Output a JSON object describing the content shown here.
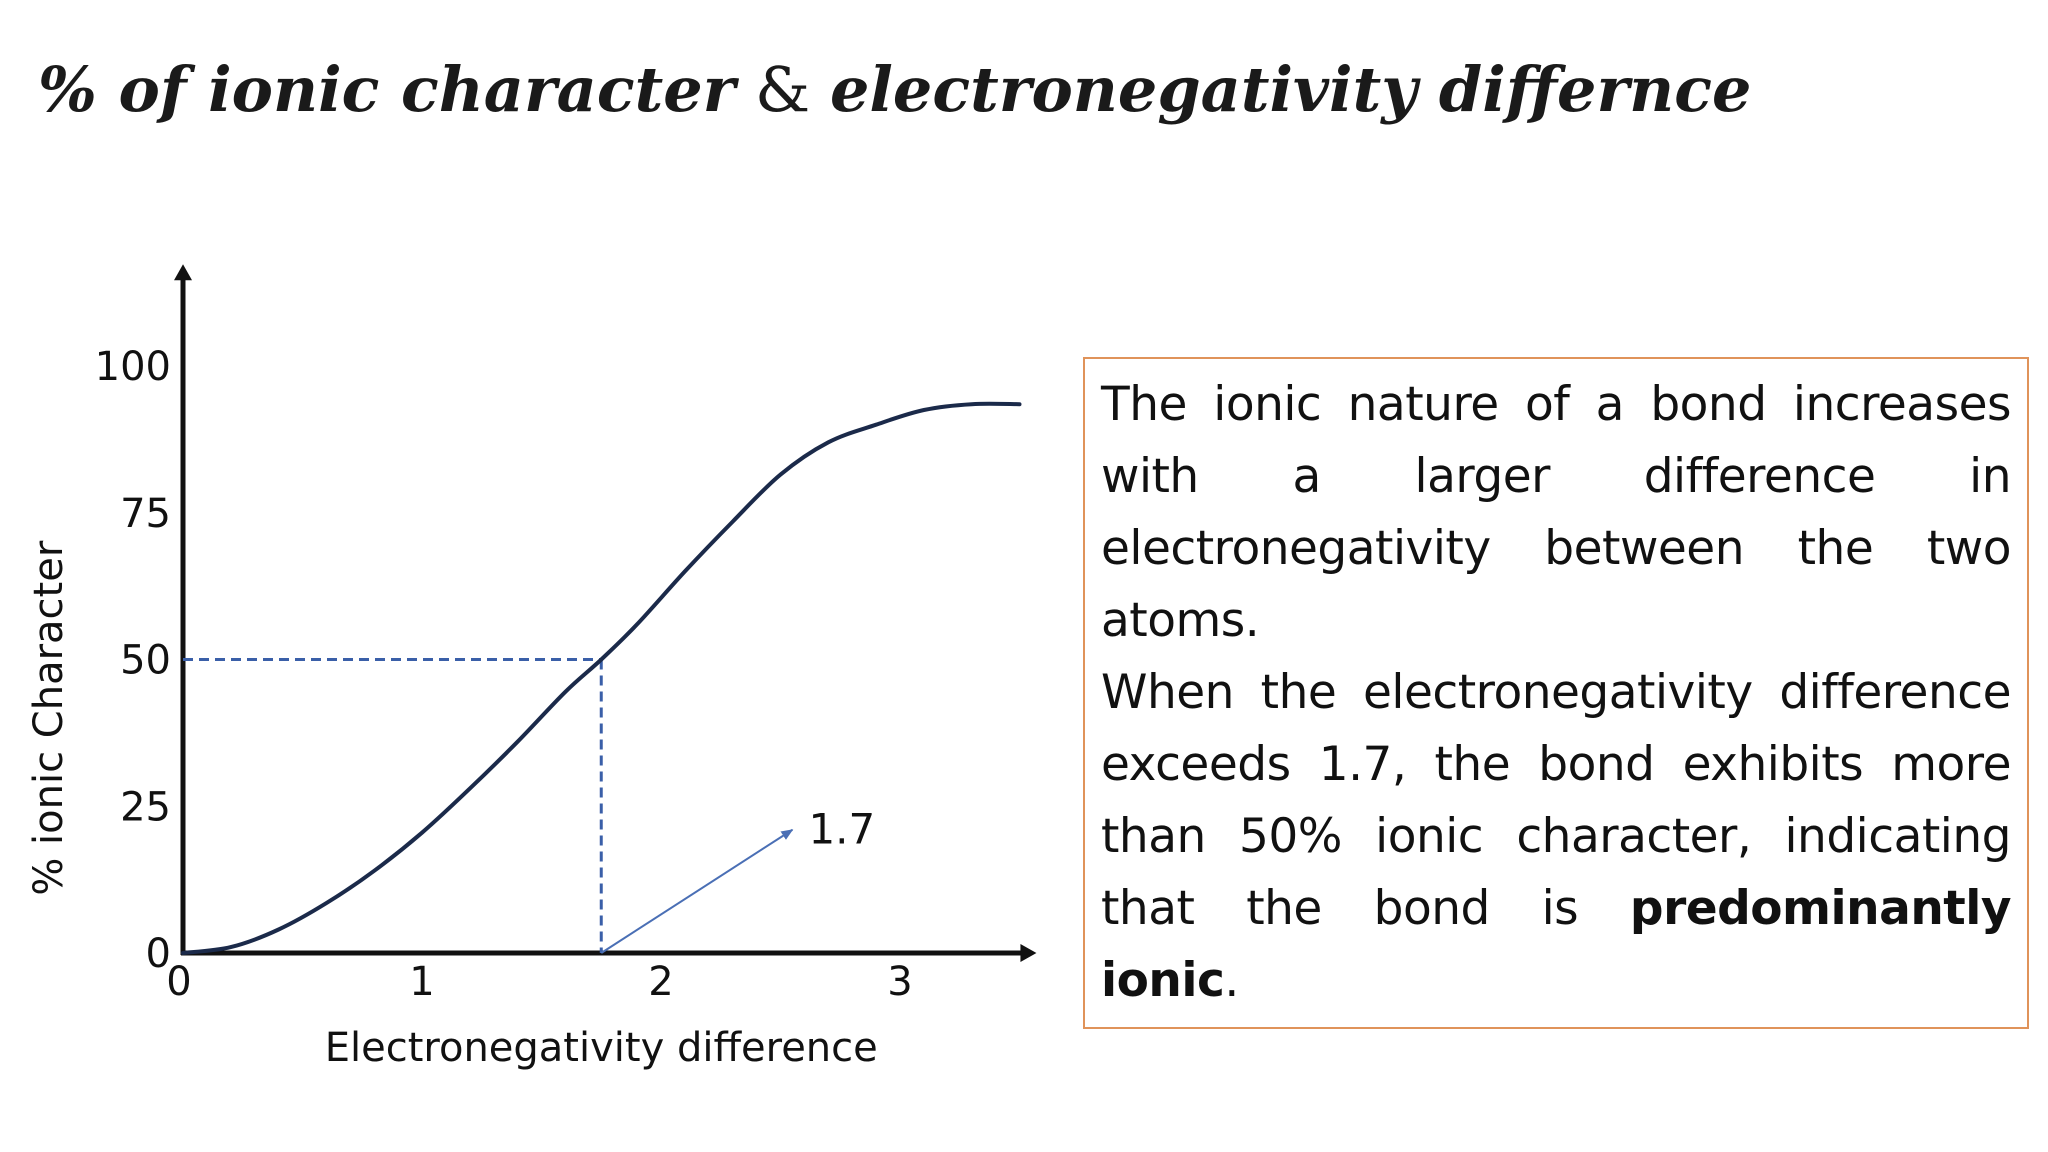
{
  "title": {
    "part1": "% of ionic character",
    "connector": " & ",
    "part2": "electronegativity differnce"
  },
  "chart_data": {
    "type": "line",
    "xlabel": "Electronegativity difference",
    "ylabel": "% ionic Character",
    "xlim": [
      0,
      3.55
    ],
    "ylim": [
      0,
      117
    ],
    "x_ticks": [
      0,
      1,
      2,
      3
    ],
    "y_ticks": [
      0,
      25,
      50,
      75,
      100
    ],
    "grid": false,
    "legend": "none",
    "line_color": "#1b2a4a",
    "series": [
      {
        "x": [
          0,
          0.2,
          0.4,
          0.6,
          0.8,
          1.0,
          1.2,
          1.4,
          1.6,
          1.75,
          1.9,
          2.1,
          2.3,
          2.5,
          2.7,
          2.9,
          3.1,
          3.3,
          3.5
        ],
        "values": [
          0,
          1,
          4,
          8.5,
          14,
          20.5,
          28,
          36,
          44.5,
          50,
          56,
          65,
          73.5,
          81.5,
          87,
          90,
          92.5,
          93.5,
          93.5
        ]
      }
    ],
    "annotations": [
      {
        "type": "dashed-guide",
        "x": 1.75,
        "y": 50,
        "color": "#3a5fa8"
      },
      {
        "type": "arrow-label",
        "text": "1.7",
        "from_x": 1.75,
        "from_y": 0,
        "to_x": 2.55,
        "to_y": 21,
        "color": "#4a6fb5"
      }
    ]
  },
  "text_box": {
    "sentence1": "The ionic nature of a bond increases with a larger difference in electronegativity between the two atoms.",
    "sentence2_start": "When the electronegativity difference exceeds 1.7, the bond exhibits more than 50% ionic character, indicating that the bond is ",
    "sentence2_bold": "predominantly ionic",
    "sentence2_end": ".",
    "border_color": "#e0935a"
  }
}
